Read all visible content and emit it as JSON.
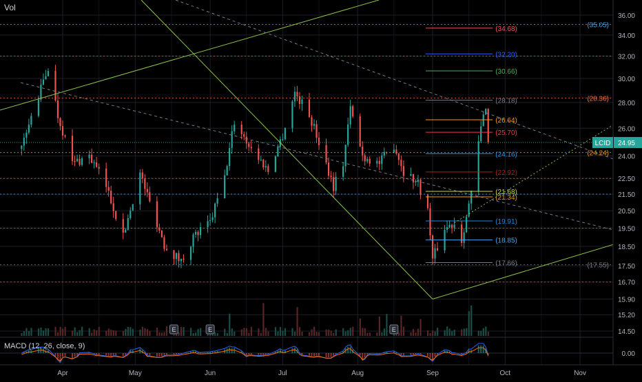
{
  "header": {
    "volume_label": "Vol"
  },
  "macd": {
    "label": "MACD (12, 26, close, 9)",
    "zero_label": "0.00"
  },
  "chart_data": {
    "type": "candlestick",
    "symbol": "LCID",
    "last_price": 24.95,
    "y_axis": {
      "ticks": [
        "36.00",
        "34.00",
        "32.00",
        "30.00",
        "28.00",
        "26.00",
        "24.00",
        "22.50",
        "21.50",
        "20.50",
        "19.50",
        "18.50",
        "17.50",
        "16.70",
        "15.90",
        "15.20",
        "14.50"
      ],
      "scale": "log"
    },
    "x_axis": {
      "ticks": [
        "Apr",
        "May",
        "Jun",
        "Jul",
        "Aug",
        "Sep",
        "Oct",
        "Nov"
      ]
    },
    "price_path": [
      [
        "2021-03-15",
        24.5
      ],
      [
        "2021-03-22",
        28.5
      ],
      [
        "2021-03-26",
        31.0
      ],
      [
        "2021-03-30",
        27.0
      ],
      [
        "2021-04-05",
        23.5
      ],
      [
        "2021-04-12",
        24.0
      ],
      [
        "2021-04-19",
        22.0
      ],
      [
        "2021-04-26",
        19.0
      ],
      [
        "2021-05-03",
        22.8
      ],
      [
        "2021-05-07",
        21.0
      ],
      [
        "2021-05-13",
        18.6
      ],
      [
        "2021-05-20",
        17.7
      ],
      [
        "2021-05-25",
        19.0
      ],
      [
        "2021-06-01",
        19.8
      ],
      [
        "2021-06-07",
        22.5
      ],
      [
        "2021-06-11",
        26.5
      ],
      [
        "2021-06-18",
        24.5
      ],
      [
        "2021-06-25",
        23.0
      ],
      [
        "2021-07-01",
        25.5
      ],
      [
        "2021-07-06",
        28.8
      ],
      [
        "2021-07-12",
        27.0
      ],
      [
        "2021-07-16",
        25.0
      ],
      [
        "2021-07-22",
        22.0
      ],
      [
        "2021-07-26",
        23.5
      ],
      [
        "2021-07-29",
        27.5
      ],
      [
        "2021-08-03",
        24.0
      ],
      [
        "2021-08-10",
        23.5
      ],
      [
        "2021-08-16",
        24.8
      ],
      [
        "2021-08-20",
        23.0
      ],
      [
        "2021-08-26",
        22.2
      ],
      [
        "2021-08-30",
        20.5
      ],
      [
        "2021-09-01",
        17.8
      ],
      [
        "2021-09-06",
        19.5
      ],
      [
        "2021-09-10",
        19.8
      ],
      [
        "2021-09-13",
        18.9
      ],
      [
        "2021-09-17",
        21.5
      ],
      [
        "2021-09-21",
        26.0
      ],
      [
        "2021-09-23",
        27.8
      ],
      [
        "2021-09-24",
        24.95
      ]
    ],
    "fib_levels": [
      {
        "label": "(34.68)",
        "value": 34.68,
        "color": "#f7525f"
      },
      {
        "label": "(32.20)",
        "value": 32.2,
        "color": "#2962ff"
      },
      {
        "label": "(30.66)",
        "value": 30.66,
        "color": "#4caf50"
      },
      {
        "label": "(28.18)",
        "value": 28.18,
        "color": "#787b86"
      },
      {
        "label": "(26.64)",
        "value": 26.64,
        "color": "#ff9800"
      },
      {
        "label": "(25.70)",
        "value": 25.7,
        "color": "#f23645"
      },
      {
        "label": "(24.16)",
        "value": 24.16,
        "color": "#2196f3"
      },
      {
        "label": "(22.92)",
        "value": 22.92,
        "color": "#b71c1c"
      },
      {
        "label": "(21.68)",
        "value": 21.68,
        "color": "#cddc39"
      },
      {
        "label": "(21.34)",
        "value": 21.34,
        "color": "#ff9800"
      },
      {
        "label": "(19.91)",
        "value": 19.91,
        "color": "#1e88e5"
      },
      {
        "label": "(18.85)",
        "value": 18.85,
        "color": "#42a5f5"
      },
      {
        "label": "(17.66)",
        "value": 17.66,
        "color": "#787b86"
      }
    ],
    "horizontal_lines": [
      {
        "label": "(35.05)",
        "value": 35.05,
        "color": "#42a5f5"
      },
      {
        "label": "(28.36)",
        "value": 28.36,
        "color": "#ff7043"
      },
      {
        "label": "(24.24)",
        "value": 24.24,
        "color": "#ff9800"
      },
      {
        "label": "(17.55)",
        "value": 17.55,
        "color": "#787b86"
      },
      {
        "label": "",
        "value": 21.5,
        "color": "#42a5f5"
      },
      {
        "label": "",
        "value": 22.5,
        "color": "#ef5350"
      },
      {
        "label": "",
        "value": 19.5,
        "color": "#ef5350"
      },
      {
        "label": "",
        "value": 16.7,
        "color": "#ef5350"
      },
      {
        "label": "",
        "value": 32.0,
        "color": "#ef5350"
      }
    ],
    "earnings_markers": [
      "E",
      "E",
      "E"
    ],
    "colors": {
      "up": "#26a69a",
      "down": "#ef5350",
      "trend": "#8bc34a",
      "last_price": "#26a69a"
    }
  }
}
